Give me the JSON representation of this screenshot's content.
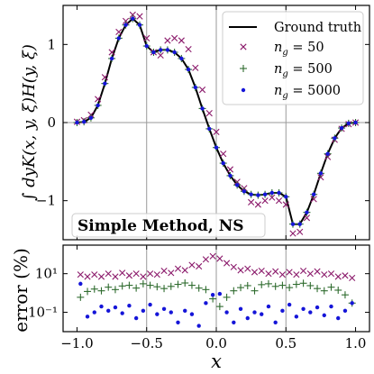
{
  "chart_data": [
    {
      "type": "line",
      "panel": "top",
      "ylabel": "∫ dyK(x, y, ξ)H(y, ξ)",
      "xlim": [
        -1.1,
        1.1
      ],
      "ylim": [
        -1.5,
        1.5
      ],
      "yticks": [
        1,
        0,
        -1
      ],
      "ytick_labels": [
        "1",
        "0",
        "−1"
      ],
      "xticks": [
        -1.0,
        -0.5,
        0.0,
        0.5,
        1.0
      ],
      "grid": "lines at x = -0.5, 0, 0.5 and y = 0",
      "legend_position": "top-right",
      "annotation": "Simple Method, NS",
      "series": [
        {
          "name": "Ground truth",
          "style": "solid line",
          "color": "#000000",
          "x": [
            -1.0,
            -0.95,
            -0.9,
            -0.85,
            -0.8,
            -0.75,
            -0.7,
            -0.65,
            -0.6,
            -0.55,
            -0.5,
            -0.45,
            -0.4,
            -0.35,
            -0.3,
            -0.25,
            -0.2,
            -0.15,
            -0.1,
            -0.05,
            0.0,
            0.05,
            0.1,
            0.15,
            0.2,
            0.25,
            0.3,
            0.35,
            0.4,
            0.45,
            0.5,
            0.55,
            0.6,
            0.65,
            0.7,
            0.75,
            0.8,
            0.85,
            0.9,
            0.95,
            1.0
          ],
          "y": [
            0.0,
            0.01,
            0.06,
            0.22,
            0.5,
            0.82,
            1.08,
            1.25,
            1.33,
            1.25,
            0.98,
            0.9,
            0.93,
            0.93,
            0.9,
            0.82,
            0.68,
            0.45,
            0.18,
            -0.08,
            -0.32,
            -0.52,
            -0.68,
            -0.8,
            -0.88,
            -0.92,
            -0.93,
            -0.92,
            -0.9,
            -0.9,
            -0.95,
            -1.3,
            -1.3,
            -1.15,
            -0.92,
            -0.65,
            -0.4,
            -0.2,
            -0.07,
            -0.01,
            0.0
          ]
        },
        {
          "name": "n_g = 50",
          "style": "x markers",
          "color": "#8b1a6b",
          "x": [
            -1.0,
            -0.95,
            -0.9,
            -0.85,
            -0.8,
            -0.75,
            -0.7,
            -0.65,
            -0.6,
            -0.55,
            -0.5,
            -0.45,
            -0.4,
            -0.35,
            -0.3,
            -0.25,
            -0.2,
            -0.15,
            -0.1,
            -0.05,
            0.0,
            0.05,
            0.1,
            0.15,
            0.2,
            0.25,
            0.3,
            0.35,
            0.4,
            0.45,
            0.5,
            0.55,
            0.6,
            0.65,
            0.7,
            0.75,
            0.8,
            0.85,
            0.9,
            0.95,
            1.0
          ],
          "y": [
            0.01,
            0.03,
            0.1,
            0.3,
            0.58,
            0.9,
            1.16,
            1.3,
            1.38,
            1.36,
            1.08,
            0.9,
            0.86,
            1.05,
            1.08,
            1.05,
            0.94,
            0.7,
            0.42,
            0.12,
            -0.12,
            -0.4,
            -0.6,
            -0.76,
            -0.84,
            -1.02,
            -1.05,
            -1.0,
            -0.96,
            -1.0,
            -1.05,
            -1.42,
            -1.4,
            -1.22,
            -0.98,
            -0.7,
            -0.44,
            -0.22,
            -0.08,
            -0.02,
            0.0
          ]
        },
        {
          "name": "n_g = 500",
          "style": "+ markers",
          "color": "#2e6b2e",
          "x": [
            -1.0,
            -0.95,
            -0.9,
            -0.85,
            -0.8,
            -0.75,
            -0.7,
            -0.65,
            -0.6,
            -0.55,
            -0.5,
            -0.45,
            -0.4,
            -0.35,
            -0.3,
            -0.25,
            -0.2,
            -0.15,
            -0.1,
            -0.05,
            0.0,
            0.05,
            0.1,
            0.15,
            0.2,
            0.25,
            0.3,
            0.35,
            0.4,
            0.45,
            0.5,
            0.55,
            0.6,
            0.65,
            0.7,
            0.75,
            0.8,
            0.85,
            0.9,
            0.95,
            1.0
          ],
          "y": [
            0.0,
            0.01,
            0.06,
            0.22,
            0.5,
            0.82,
            1.08,
            1.25,
            1.33,
            1.25,
            0.98,
            0.9,
            0.93,
            0.93,
            0.9,
            0.82,
            0.68,
            0.45,
            0.18,
            -0.08,
            -0.32,
            -0.52,
            -0.68,
            -0.8,
            -0.88,
            -0.92,
            -0.93,
            -0.92,
            -0.9,
            -0.9,
            -0.95,
            -1.3,
            -1.3,
            -1.15,
            -0.92,
            -0.65,
            -0.4,
            -0.2,
            -0.07,
            -0.01,
            0.0
          ]
        },
        {
          "name": "n_g = 5000",
          "style": "dot markers",
          "color": "#1515d8",
          "x": [
            -1.0,
            -0.95,
            -0.9,
            -0.85,
            -0.8,
            -0.75,
            -0.7,
            -0.65,
            -0.6,
            -0.55,
            -0.5,
            -0.45,
            -0.4,
            -0.35,
            -0.3,
            -0.25,
            -0.2,
            -0.15,
            -0.1,
            -0.05,
            0.0,
            0.05,
            0.1,
            0.15,
            0.2,
            0.25,
            0.3,
            0.35,
            0.4,
            0.45,
            0.5,
            0.55,
            0.6,
            0.65,
            0.7,
            0.75,
            0.8,
            0.85,
            0.9,
            0.95,
            1.0
          ],
          "y": [
            0.0,
            0.01,
            0.06,
            0.22,
            0.5,
            0.82,
            1.08,
            1.25,
            1.33,
            1.25,
            0.98,
            0.9,
            0.93,
            0.93,
            0.9,
            0.82,
            0.68,
            0.45,
            0.18,
            -0.08,
            -0.32,
            -0.52,
            -0.68,
            -0.8,
            -0.88,
            -0.92,
            -0.93,
            -0.92,
            -0.9,
            -0.9,
            -0.95,
            -1.3,
            -1.3,
            -1.15,
            -0.92,
            -0.65,
            -0.4,
            -0.2,
            -0.07,
            -0.01,
            0.0
          ]
        }
      ]
    },
    {
      "type": "scatter",
      "panel": "bottom",
      "ylabel": "error (%)",
      "xlabel": "x",
      "log_y": true,
      "ylim": [
        0.01,
        300
      ],
      "yticks": [
        10,
        0.1
      ],
      "ytick_labels": [
        "10¹",
        "10⁻¹"
      ],
      "xlim": [
        -1.1,
        1.1
      ],
      "xticks": [
        -1.0,
        -0.5,
        0.0,
        0.5,
        1.0
      ],
      "xtick_labels": [
        "−1.0",
        "−0.5",
        "0.0",
        "0.5",
        "1.0"
      ],
      "grid": "lines at x = -0.5, 0, 0.5",
      "series": [
        {
          "name": "n_g = 50",
          "color": "#8b1a6b",
          "x": [
            -0.975,
            -0.925,
            -0.875,
            -0.825,
            -0.775,
            -0.725,
            -0.675,
            -0.625,
            -0.575,
            -0.525,
            -0.475,
            -0.425,
            -0.375,
            -0.325,
            -0.275,
            -0.225,
            -0.175,
            -0.125,
            -0.075,
            -0.025,
            0.025,
            0.075,
            0.125,
            0.175,
            0.225,
            0.275,
            0.325,
            0.375,
            0.425,
            0.475,
            0.525,
            0.575,
            0.625,
            0.675,
            0.725,
            0.775,
            0.825,
            0.875,
            0.925,
            0.975
          ],
          "y": [
            9,
            7,
            9,
            7,
            10,
            7,
            11,
            8,
            10,
            7,
            10,
            9,
            14,
            11,
            18,
            15,
            28,
            24,
            55,
            80,
            60,
            35,
            22,
            15,
            18,
            12,
            14,
            10,
            13,
            9,
            12,
            9,
            14,
            10,
            13,
            9,
            10,
            7,
            8,
            6
          ]
        },
        {
          "name": "n_g = 500",
          "color": "#2e6b2e",
          "x": [
            -0.975,
            -0.925,
            -0.875,
            -0.825,
            -0.775,
            -0.725,
            -0.675,
            -0.625,
            -0.575,
            -0.525,
            -0.475,
            -0.425,
            -0.375,
            -0.325,
            -0.275,
            -0.225,
            -0.175,
            -0.125,
            -0.075,
            -0.025,
            0.025,
            0.075,
            0.125,
            0.175,
            0.225,
            0.275,
            0.325,
            0.375,
            0.425,
            0.475,
            0.525,
            0.575,
            0.625,
            0.675,
            0.725,
            0.775,
            0.825,
            0.875,
            0.925,
            0.975
          ],
          "y": [
            0.6,
            1.2,
            1.6,
            1.3,
            2.0,
            1.5,
            2.3,
            2.5,
            1.8,
            3.0,
            2.5,
            2.1,
            1.7,
            2.2,
            2.8,
            3.3,
            2.5,
            1.8,
            1.5,
            0.5,
            0.2,
            0.6,
            1.3,
            1.9,
            2.4,
            1.3,
            2.7,
            3.0,
            2.2,
            2.5,
            1.9,
            2.8,
            3.2,
            2.4,
            1.7,
            1.3,
            2.0,
            1.4,
            0.8,
            0.3
          ]
        },
        {
          "name": "n_g = 5000",
          "color": "#1515d8",
          "x": [
            -0.975,
            -0.925,
            -0.875,
            -0.825,
            -0.775,
            -0.725,
            -0.675,
            -0.625,
            -0.575,
            -0.525,
            -0.475,
            -0.425,
            -0.375,
            -0.325,
            -0.275,
            -0.225,
            -0.175,
            -0.125,
            -0.075,
            -0.025,
            0.025,
            0.075,
            0.125,
            0.175,
            0.225,
            0.275,
            0.325,
            0.375,
            0.425,
            0.475,
            0.525,
            0.575,
            0.625,
            0.675,
            0.725,
            0.775,
            0.825,
            0.875,
            0.925,
            0.975
          ],
          "y": [
            3,
            0.06,
            0.1,
            0.2,
            0.12,
            0.18,
            0.09,
            0.22,
            0.05,
            0.12,
            0.25,
            0.08,
            0.15,
            0.1,
            0.03,
            0.12,
            0.08,
            0.02,
            0.3,
            0.8,
            0.9,
            0.1,
            0.03,
            0.15,
            0.05,
            0.1,
            0.08,
            0.2,
            0.03,
            0.12,
            0.25,
            0.06,
            0.15,
            0.1,
            0.18,
            0.07,
            0.2,
            0.05,
            0.12,
            0.3
          ]
        }
      ]
    }
  ]
}
